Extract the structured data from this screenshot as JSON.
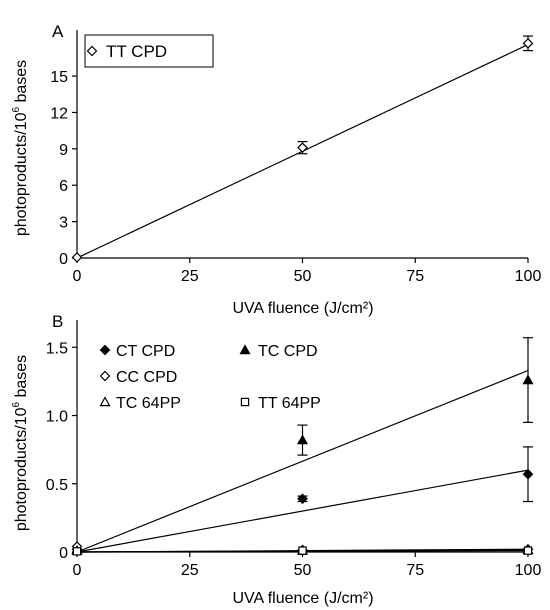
{
  "chart_data": [
    {
      "panel_label": "A",
      "type": "scatter",
      "xlabel": "UVA fluence (J/cm²)",
      "ylabel": {
        "main": "photoproducts/10",
        "exp": "6",
        "tail": " bases"
      },
      "xlim": [
        0,
        100
      ],
      "ylim": [
        0,
        18.8
      ],
      "xticks": [
        0,
        25,
        50,
        75,
        100
      ],
      "yticks": [
        0,
        3,
        6,
        9,
        12,
        15
      ],
      "grid": false,
      "legend_position": "top-left",
      "series": [
        {
          "name": "TT CPD",
          "marker": "open-diamond",
          "x": [
            0,
            50,
            100
          ],
          "y": [
            0.05,
            9.1,
            17.7
          ],
          "err": [
            0,
            0.5,
            0.6
          ],
          "trendline": {
            "x": [
              0,
              100
            ],
            "y": [
              0.0,
              17.6
            ]
          }
        }
      ]
    },
    {
      "panel_label": "B",
      "type": "scatter",
      "xlabel": "UVA fluence (J/cm²)",
      "ylabel": {
        "main": "photoproducts/10",
        "exp": "6",
        "tail": " bases"
      },
      "xlim": [
        0,
        100
      ],
      "ylim": [
        0,
        1.7
      ],
      "xticks": [
        0,
        25,
        50,
        75,
        100
      ],
      "yticks": [
        0,
        0.5,
        1.0,
        1.5
      ],
      "ytick_labels": [
        "0",
        "0.5",
        "1.0",
        "1.5"
      ],
      "grid": false,
      "legend_position": "top-left",
      "series": [
        {
          "name": "CT CPD",
          "marker": "filled-diamond",
          "x": [
            0,
            50,
            100
          ],
          "y": [
            0.02,
            0.39,
            0.57
          ],
          "err": [
            0,
            0.02,
            0.2
          ],
          "trendline": {
            "x": [
              0,
              100
            ],
            "y": [
              0.0,
              0.6
            ]
          }
        },
        {
          "name": "TC CPD",
          "marker": "filled-triangle",
          "x": [
            0,
            50,
            100
          ],
          "y": [
            0.02,
            0.82,
            1.26
          ],
          "err": [
            0,
            0.11,
            0.31
          ],
          "trendline": {
            "x": [
              0,
              100
            ],
            "y": [
              0.0,
              1.33
            ]
          }
        },
        {
          "name": "CC CPD",
          "marker": "open-diamond",
          "x": [
            0,
            50,
            100
          ],
          "y": [
            0.04,
            0.015,
            0.02
          ],
          "err": [
            0,
            0,
            0
          ],
          "trendline": {
            "x": [
              0,
              100
            ],
            "y": [
              0.0,
              0.02
            ]
          }
        },
        {
          "name": "TC 64PP",
          "marker": "open-triangle",
          "x": [
            0,
            50,
            100
          ],
          "y": [
            0.01,
            0.01,
            0.015
          ],
          "err": [
            0,
            0,
            0
          ],
          "trendline": {
            "x": [
              0,
              100
            ],
            "y": [
              0.0,
              0.015
            ]
          }
        },
        {
          "name": "TT 64PP",
          "marker": "open-square",
          "x": [
            0,
            50,
            100
          ],
          "y": [
            0.005,
            0.01,
            0.01
          ],
          "err": [
            0,
            0,
            0
          ],
          "trendline": {
            "x": [
              0,
              100
            ],
            "y": [
              0.0,
              0.01
            ]
          }
        }
      ]
    }
  ]
}
